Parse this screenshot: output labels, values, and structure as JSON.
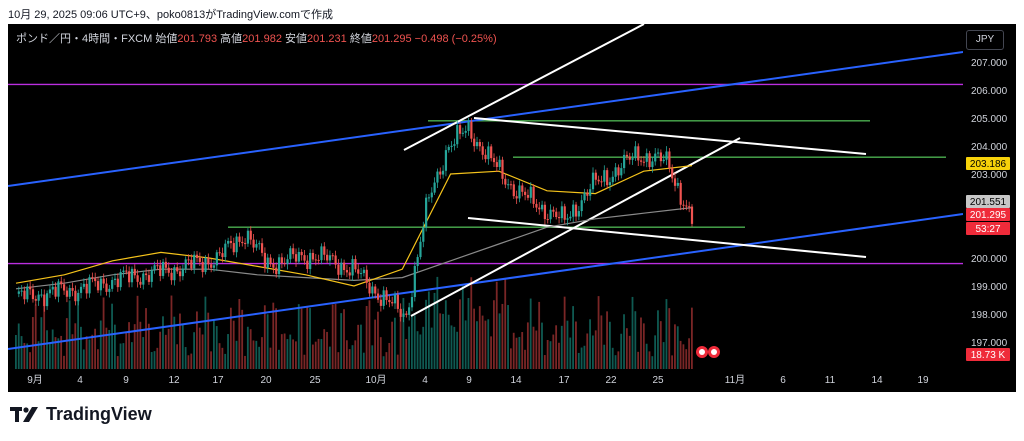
{
  "header": {
    "caption": "10月 29, 2025 09:06 UTC+9、poko0813がTradingView.comで作成"
  },
  "legend": {
    "symbol": "ポンド／円・4時間・FXCM",
    "open_label": "始値",
    "open": "201.793",
    "high_label": "高値",
    "high": "201.982",
    "low_label": "安値",
    "low": "201.231",
    "close_label": "終値",
    "close": "201.295",
    "change": "−0.498 (−0.25%)"
  },
  "currency_button": "JPY",
  "brand": {
    "name": "TradingView"
  },
  "chart_data": {
    "type": "candlestick",
    "x_ticks": [
      "9月",
      "4",
      "9",
      "12",
      "17",
      "20",
      "25",
      "10月",
      "4",
      "9",
      "14",
      "17",
      "22",
      "25",
      "11月",
      "6",
      "11",
      "14",
      "19"
    ],
    "y_ticks": [
      "207.000",
      "206.000",
      "205.000",
      "204.000",
      "203.000",
      "202.000",
      "201.000",
      "200.000",
      "199.000",
      "198.000",
      "197.000"
    ],
    "ylim": [
      196.5,
      207.5
    ],
    "series": [
      {
        "name": "price",
        "points": [
          [
            "9月",
            198.6
          ],
          [
            "4",
            198.9
          ],
          [
            "9",
            199.3
          ],
          [
            "12",
            199.6
          ],
          [
            "17",
            200.0
          ],
          [
            "18",
            200.9
          ],
          [
            "20",
            199.8
          ],
          [
            "25",
            200.1
          ],
          [
            "29",
            199.6
          ],
          [
            "10月",
            198.8
          ],
          [
            "3",
            197.9
          ],
          [
            "6",
            202.0
          ],
          [
            "8",
            204.0
          ],
          [
            "9",
            204.6
          ],
          [
            "10",
            203.6
          ],
          [
            "14",
            202.4
          ],
          [
            "17",
            201.3
          ],
          [
            "20",
            202.6
          ],
          [
            "22",
            203.0
          ],
          [
            "24",
            203.7
          ],
          [
            "27",
            203.4
          ],
          [
            "28",
            201.3
          ]
        ]
      }
    ],
    "ma_fast_trend": [
      199.1,
      199.4,
      199.9,
      200.2,
      200.0,
      199.7,
      199.4,
      199.0,
      199.6,
      203.0,
      203.1,
      202.4,
      202.3,
      203.1,
      203.3
    ],
    "ma_slow_trend": [
      198.9,
      199.1,
      199.4,
      199.6,
      199.6,
      199.4,
      199.3,
      199.2,
      199.3,
      199.9,
      200.5,
      201.1,
      201.4,
      201.6,
      201.8
    ],
    "horizontal_levels": [
      {
        "value": 206.2,
        "color": "#ba2ee0"
      },
      {
        "value": 204.9,
        "color": "#4caf50"
      },
      {
        "value": 203.6,
        "color": "#4caf50"
      },
      {
        "value": 201.1,
        "color": "#4caf50"
      },
      {
        "value": 199.8,
        "color": "#ba2ee0"
      }
    ],
    "price_tags": [
      {
        "label": "203.186",
        "value": 203.186,
        "bg": "#f7d20a",
        "fg": "#000000"
      },
      {
        "label": "201.551",
        "value": 201.551,
        "bg": "#c7c7c7",
        "fg": "#000000"
      },
      {
        "label": "201.295",
        "value": 201.295,
        "bg": "#ef2b3a",
        "fg": "#ffffff"
      },
      {
        "label": "53:27",
        "value": 200.85,
        "bg": "#ef2b3a",
        "fg": "#ffffff"
      }
    ],
    "volume_label": "18.73 K",
    "grid": false,
    "colors": {
      "up": "#26a69a",
      "down": "#ef5350",
      "ma_fast": "#f5c31b",
      "ma_slow": "#8a8a8a",
      "channel": "#2962ff",
      "trend": "#ffffff"
    }
  }
}
